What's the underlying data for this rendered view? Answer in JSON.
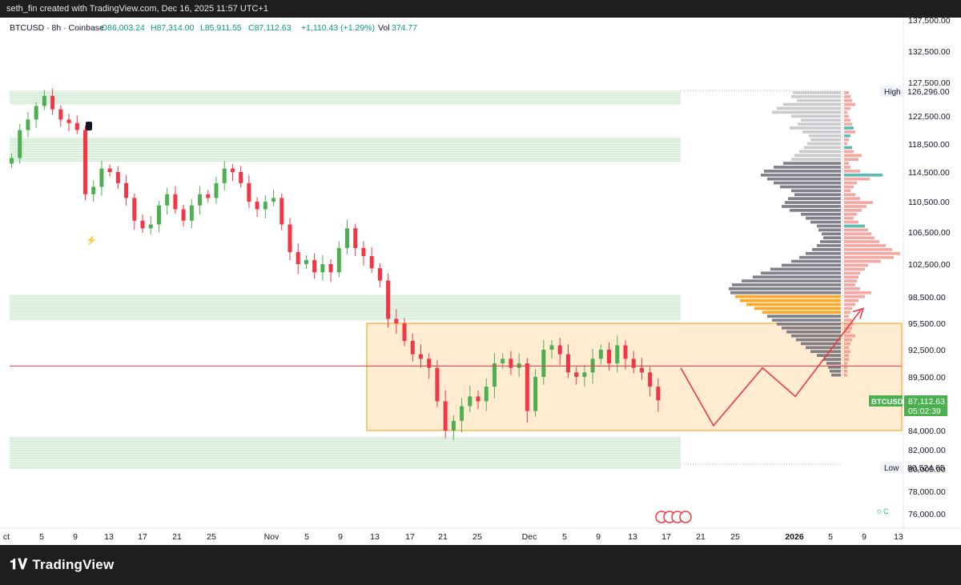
{
  "header": {
    "caption": "seth_fin created with TradingView.com, Dec 16, 2025 11:57 UTC+1"
  },
  "legend": {
    "symbol": "BTCUSD · 8h · Coinbase",
    "open": "O86,003.24",
    "high": "H87,314.00",
    "low": "L85,911.55",
    "close": "C87,112.63",
    "change": "+1,110.43 (+1.29%)",
    "volume_label": "Vol",
    "volume": "374.77"
  },
  "colors": {
    "up": "#26a69a",
    "candle_up": "#4caf50",
    "candle_down": "#f23645",
    "zone": "#c8e6c9",
    "range_fill": "#ffe0b2",
    "range_border": "#ff9800",
    "vp_gray": "#6b6b78",
    "vp_orange": "#ff9800",
    "vp_red": "#f28b82",
    "vp_teal": "#26a69a"
  },
  "price_scale": {
    "high_label": "High",
    "high_value": "126,296.00",
    "low_label": "Low",
    "low_value": "80,524.65",
    "last_symbol": "BTCUSD",
    "last_price": "87,112.63",
    "countdown": "05:02:39"
  },
  "chart_data": {
    "type": "candlestick",
    "y_ticks": [
      137500,
      132500,
      127500,
      122500,
      118500,
      114500,
      110500,
      106500,
      102500,
      98500,
      95500,
      92500,
      89500,
      84000,
      82000,
      80000,
      78000,
      76000
    ],
    "y_tick_labels": [
      "137,500.00",
      "132,500.00",
      "127,500.00",
      "122,500.00",
      "118,500.00",
      "114,500.00",
      "110,500.00",
      "106,500.00",
      "102,500.00",
      "98,500.00",
      "95,500.00",
      "92,500.00",
      "89,500.00",
      "84,000.00",
      "82,000.00",
      "80,000.00",
      "78,000.00",
      "76,000.00"
    ],
    "x_tick_labels": [
      "ct",
      "5",
      "9",
      "13",
      "17",
      "21",
      "25",
      "Nov",
      "5",
      "9",
      "13",
      "17",
      "21",
      "25",
      "Dec",
      "5",
      "9",
      "13",
      "17",
      "21",
      "25",
      "2026",
      "5",
      "9",
      "13"
    ],
    "close_path": [
      [
        0,
        116500
      ],
      [
        1,
        120500
      ],
      [
        2,
        122000
      ],
      [
        3,
        124000
      ],
      [
        4,
        125500
      ],
      [
        5,
        123500
      ],
      [
        6,
        122000
      ],
      [
        7,
        121500
      ],
      [
        8,
        120500
      ],
      [
        9,
        111500
      ],
      [
        10,
        112500
      ],
      [
        11,
        115000
      ],
      [
        12,
        114500
      ],
      [
        13,
        113000
      ],
      [
        14,
        111000
      ],
      [
        15,
        108000
      ],
      [
        16,
        107000
      ],
      [
        17,
        107500
      ],
      [
        18,
        110000
      ],
      [
        19,
        111500
      ],
      [
        20,
        109500
      ],
      [
        21,
        108000
      ],
      [
        22,
        110000
      ],
      [
        23,
        111500
      ],
      [
        24,
        111000
      ],
      [
        25,
        113000
      ],
      [
        26,
        115000
      ],
      [
        27,
        114500
      ],
      [
        28,
        113000
      ],
      [
        29,
        110500
      ],
      [
        30,
        109500
      ],
      [
        31,
        110500
      ],
      [
        32,
        111000
      ],
      [
        33,
        107500
      ],
      [
        34,
        104000
      ],
      [
        35,
        102500
      ],
      [
        36,
        103000
      ],
      [
        37,
        101500
      ],
      [
        38,
        102500
      ],
      [
        39,
        101500
      ],
      [
        40,
        104500
      ],
      [
        41,
        107000
      ],
      [
        42,
        104500
      ],
      [
        43,
        103500
      ],
      [
        44,
        102000
      ],
      [
        45,
        100500
      ],
      [
        46,
        96000
      ],
      [
        47,
        95500
      ],
      [
        48,
        93500
      ],
      [
        49,
        92000
      ],
      [
        50,
        91500
      ],
      [
        51,
        90500
      ],
      [
        52,
        87000
      ],
      [
        53,
        84000
      ],
      [
        54,
        85000
      ],
      [
        55,
        86500
      ],
      [
        56,
        87500
      ],
      [
        57,
        87000
      ],
      [
        58,
        88500
      ],
      [
        59,
        91000
      ],
      [
        60,
        91500
      ],
      [
        61,
        90500
      ],
      [
        62,
        91000
      ],
      [
        63,
        86000
      ],
      [
        64,
        89500
      ],
      [
        65,
        92500
      ],
      [
        66,
        93000
      ],
      [
        67,
        92000
      ],
      [
        68,
        90000
      ],
      [
        69,
        89500
      ],
      [
        70,
        90000
      ],
      [
        71,
        91500
      ],
      [
        72,
        92500
      ],
      [
        73,
        91000
      ],
      [
        74,
        93000
      ],
      [
        75,
        91500
      ],
      [
        76,
        90500
      ],
      [
        77,
        90000
      ],
      [
        78,
        88500
      ],
      [
        79,
        87100
      ]
    ],
    "zones": [
      {
        "top": 126300,
        "bottom": 124200
      },
      {
        "top": 119500,
        "bottom": 116000
      },
      {
        "top": 98800,
        "bottom": 95800
      },
      {
        "top": 83400,
        "bottom": 80000
      }
    ],
    "range_box": {
      "top": 95500,
      "bottom": 84000
    },
    "red_level": 90700,
    "projection": [
      [
        82,
        90500
      ],
      [
        86,
        84500
      ],
      [
        92,
        90500
      ],
      [
        96,
        87500
      ],
      [
        104,
        97000
      ]
    ],
    "events_label": "!"
  }
}
